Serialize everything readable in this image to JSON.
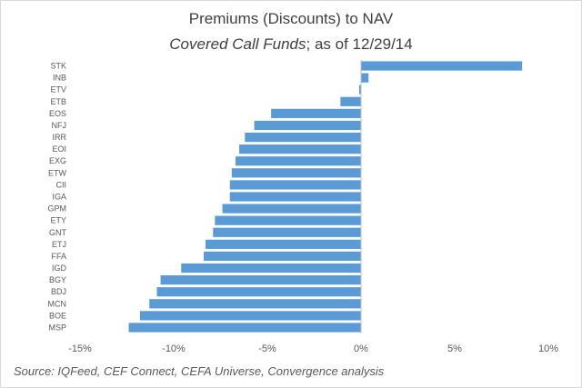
{
  "title": {
    "line1": "Premiums (Discounts) to NAV",
    "line2_italic": "Covered Call Funds",
    "line2_rest": "; as of 12/29/14"
  },
  "source": "Source:  IQFeed, CEF Connect, CEFA Universe, Convergence analysis",
  "colors": {
    "bar": "#5b9bd5",
    "axis": "#bfbfbf",
    "text": "#595959"
  },
  "chart_data": {
    "type": "bar",
    "orientation": "horizontal",
    "categories": [
      "STK",
      "INB",
      "ETV",
      "ETB",
      "EOS",
      "NFJ",
      "IRR",
      "EOI",
      "EXG",
      "ETW",
      "CII",
      "IGA",
      "GPM",
      "ETY",
      "GNT",
      "ETJ",
      "FFA",
      "IGD",
      "BGY",
      "BDJ",
      "MCN",
      "BOE",
      "MSP"
    ],
    "values": [
      8.6,
      0.4,
      -0.1,
      -1.1,
      -4.8,
      -5.7,
      -6.2,
      -6.5,
      -6.7,
      -6.9,
      -7.0,
      -7.0,
      -7.4,
      -7.8,
      -7.9,
      -8.3,
      -8.4,
      -9.6,
      -10.7,
      -10.9,
      -11.3,
      -11.8,
      -12.4
    ],
    "xlim": [
      -15,
      10
    ],
    "xticks": [
      "-15%",
      "-10%",
      "-5%",
      "0%",
      "5%",
      "10%"
    ],
    "xtick_values": [
      -15,
      -10,
      -5,
      0,
      5,
      10
    ],
    "grid": false,
    "legend": "none"
  }
}
